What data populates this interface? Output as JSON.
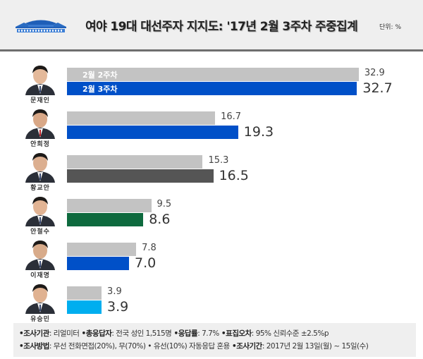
{
  "header": {
    "logo_icon": "blue-house-icon",
    "title": "여야 19대 대선주자 지지도: '17년 2월 3주차 주중집계",
    "unit": "단위: %"
  },
  "legend": {
    "prev_label": "2월 2주차",
    "curr_label": "2월 3주차"
  },
  "candidates": [
    {
      "name": "문재인",
      "prev": "32.9",
      "curr": "32.7",
      "prev_value": 32.9,
      "curr_value": 32.7,
      "color": "#0050c8"
    },
    {
      "name": "안희정",
      "prev": "16.7",
      "curr": "19.3",
      "prev_value": 16.7,
      "curr_value": 19.3,
      "color": "#0050c8"
    },
    {
      "name": "황교안",
      "prev": "15.3",
      "curr": "16.5",
      "prev_value": 15.3,
      "curr_value": 16.5,
      "color": "#555555"
    },
    {
      "name": "안철수",
      "prev": "9.5",
      "curr": "8.6",
      "prev_value": 9.5,
      "curr_value": 8.6,
      "color": "#0e6a3e"
    },
    {
      "name": "이재명",
      "prev": "7.8",
      "curr": "7.0",
      "prev_value": 7.8,
      "curr_value": 7.0,
      "color": "#0050c8"
    },
    {
      "name": "유승민",
      "prev": "3.9",
      "curr": "3.9",
      "prev_value": 3.9,
      "curr_value": 3.9,
      "color": "#00aeef"
    }
  ],
  "colors": {
    "prev_bar": "#c3c3c3",
    "header_bg": "#efefef",
    "header_rule": "#6e6e6e"
  },
  "footer": {
    "line1": [
      {
        "key": "조사기관",
        "value": "리얼미터"
      },
      {
        "key": "총응답자",
        "value": "전국 성인 1,515명"
      },
      {
        "key": "응답률",
        "value": "7.7%"
      },
      {
        "key": "표집오차",
        "value": "95% 신뢰수준 ±2.5%p"
      }
    ],
    "line2": [
      {
        "key": "조사방법",
        "value": "무선 전화면접(20%), 무(70%) • 유선(10%) 자동응답 혼용"
      },
      {
        "key": "조사기간",
        "value": "2017년 2월 13일(월) ~ 15일(수)"
      }
    ]
  },
  "chart_data": {
    "type": "bar",
    "orientation": "horizontal",
    "title": "여야 19대 대선주자 지지도: '17년 2월 3주차 주중집계",
    "unit": "%",
    "categories": [
      "문재인",
      "안희정",
      "황교안",
      "안철수",
      "이재명",
      "유승민"
    ],
    "series": [
      {
        "name": "2월 2주차",
        "values": [
          32.9,
          16.7,
          15.3,
          9.5,
          7.8,
          3.9
        ]
      },
      {
        "name": "2월 3주차",
        "values": [
          32.7,
          19.3,
          16.5,
          8.6,
          7.0,
          3.9
        ]
      }
    ],
    "xlabel": "",
    "ylabel": "",
    "grid": false,
    "legend_position": "inside-first-bars"
  }
}
